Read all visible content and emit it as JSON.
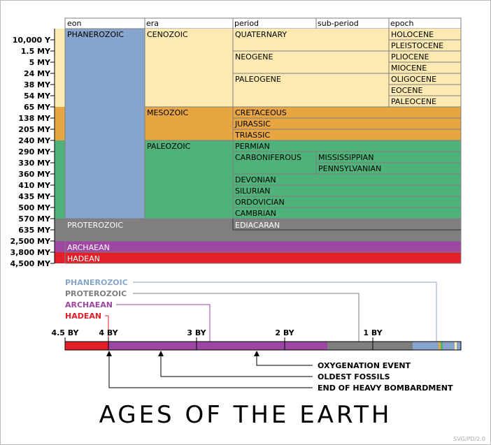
{
  "table": {
    "headers": {
      "eon": "eon",
      "era": "era",
      "period": "period",
      "subperiod": "sub-period",
      "epoch": "epoch"
    },
    "times": [
      "10,000 Y",
      "1.5 MY",
      "5 MY",
      "24 MY",
      "38 MY",
      "54 MY",
      "65 MY",
      "138 MY",
      "205 MY",
      "240 MY",
      "290 MY",
      "330 MY",
      "360 MY",
      "410 MY",
      "435 MY",
      "500 MY",
      "570 MY",
      "635 MY",
      "2,500 MY",
      "3,800 MY",
      "4,500 MY"
    ],
    "eons": {
      "phanerozoic": "PHANEROZOIC",
      "proterozoic": "PROTEROZOIC",
      "archaean": "ARCHAEAN",
      "hadean": "HADEAN"
    },
    "eras": {
      "cenozoic": "CENOZOIC",
      "mesozoic": "MESOZOIC",
      "paleozoic": "PALEOZOIC"
    },
    "periods": [
      "QUATERNARY",
      "NEOGENE",
      "PALEOGENE",
      "CRETACEOUS",
      "JURASSIC",
      "TRIASSIC",
      "PERMIAN",
      "CARBONIFEROUS",
      "DEVONIAN",
      "SILURIAN",
      "ORDOVICIAN",
      "CAMBRIAN",
      "EDIACARAN"
    ],
    "subperiods": [
      "MISSISSIPPIAN",
      "PENNSYLVANIAN"
    ],
    "epochs": [
      "HOLOCENE",
      "PLEISTOCENE",
      "PLIOCENE",
      "MIOCENE",
      "OLIGOCENE",
      "EOCENE",
      "PALEOCENE"
    ]
  },
  "colors": {
    "cenozoic": "#fde9b2",
    "mesozoic": "#e8a642",
    "paleozoic": "#4fb27a",
    "phanerozoic": "#87a5cc",
    "proterozoic": "#7f7f7f",
    "archaean": "#9e47a2",
    "hadean": "#e3202a"
  },
  "timeline": {
    "legend": [
      "PHANEROZOIC",
      "PROTEROZOIC",
      "ARCHAEAN",
      "HADEAN"
    ],
    "ticks": [
      "4.5 BY",
      "4 BY",
      "3 BY",
      "2 BY",
      "1 BY"
    ],
    "events": [
      "OXYGENATION EVENT",
      "OLDEST FOSSILS",
      "END OF HEAVY BOMBARDMENT"
    ]
  },
  "title": "AGES OF THE EARTH",
  "credit": "SVG/PD/2.0"
}
